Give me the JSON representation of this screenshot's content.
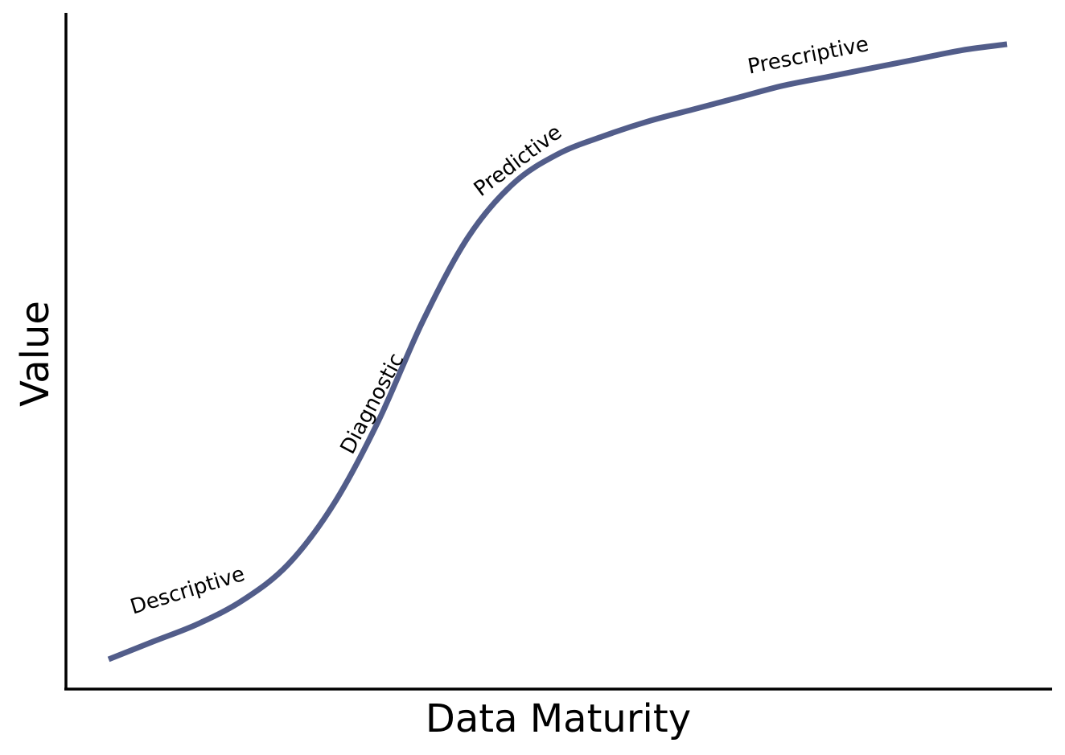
{
  "chart_data": {
    "type": "line",
    "title": "",
    "xlabel": "Data Maturity",
    "ylabel": "Value",
    "xlim": [
      0,
      10
    ],
    "ylim": [
      0,
      11
    ],
    "grid": false,
    "legend": "none",
    "x_ticks_shown": false,
    "y_ticks_shown": false,
    "series": [
      {
        "color": "#525d8a",
        "x": [
          0,
          0.5,
          1,
          1.5,
          2,
          2.5,
          3,
          3.5,
          4,
          4.5,
          5,
          5.5,
          6,
          6.5,
          7,
          7.5,
          8,
          8.5,
          9,
          9.5,
          10
        ],
        "y": [
          0.5,
          0.8,
          1.1,
          1.5,
          2.1,
          3.1,
          4.5,
          6.2,
          7.6,
          8.5,
          9.0,
          9.3,
          9.55,
          9.75,
          9.95,
          10.15,
          10.3,
          10.45,
          10.6,
          10.75,
          10.85
        ]
      }
    ],
    "annotations": [
      {
        "text": "Descriptive",
        "x": 0.9,
        "y": 1.55
      },
      {
        "text": "Diagnostic",
        "x": 3.0,
        "y": 4.75
      },
      {
        "text": "Predictive",
        "x": 4.6,
        "y": 8.8
      },
      {
        "text": "Prescriptive",
        "x": 7.8,
        "y": 10.55
      }
    ]
  }
}
